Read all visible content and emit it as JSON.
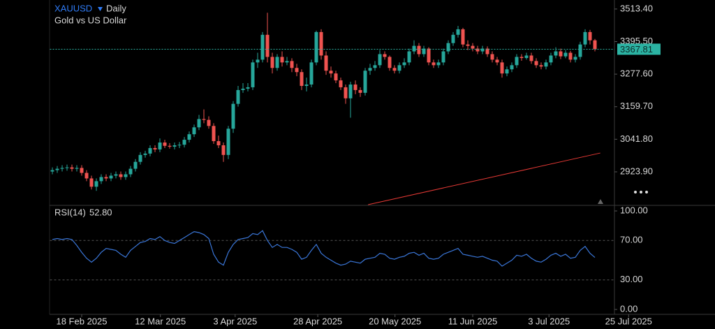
{
  "symbol": "XAUUSD",
  "interval": "Daily",
  "subtitle": "Gold vs US Dollar",
  "chart_data": [
    {
      "type": "candlestick",
      "up_color": "#26a69a",
      "down_color": "#ef5350",
      "open": [
        2925,
        2930,
        2935,
        2938,
        2940,
        2935,
        2938,
        2920,
        2900,
        2870,
        2890,
        2905,
        2900,
        2910,
        2915,
        2905,
        2915,
        2935,
        2960,
        2985,
        2990,
        3010,
        3005,
        3030,
        3018,
        3015,
        3020,
        3022,
        3040,
        3060,
        3085,
        3115,
        3112,
        3090,
        3035,
        3020,
        2985,
        3080,
        3170,
        3220,
        3225,
        3230,
        3320,
        3330,
        3420,
        3340,
        3300,
        3340,
        3320,
        3325,
        3300,
        3285,
        3235,
        3240,
        3320,
        3430,
        3345,
        3290,
        3280,
        3255,
        3230,
        3190,
        3240,
        3220,
        3210,
        3290,
        3300,
        3310,
        3350,
        3340,
        3300,
        3290,
        3310,
        3320,
        3360,
        3380,
        3350,
        3370,
        3320,
        3310,
        3320,
        3360,
        3390,
        3420,
        3440,
        3385,
        3380,
        3370,
        3360,
        3370,
        3350,
        3330,
        3320,
        3280,
        3295,
        3310,
        3340,
        3336,
        3345,
        3325,
        3310,
        3305,
        3320,
        3345,
        3360,
        3342,
        3355,
        3330,
        3340,
        3385,
        3430,
        3400
      ],
      "high": [
        2940,
        2945,
        2948,
        2950,
        2950,
        2948,
        2948,
        2930,
        2910,
        2900,
        2915,
        2915,
        2920,
        2925,
        2925,
        2925,
        2945,
        2970,
        2995,
        3000,
        3020,
        3020,
        3045,
        3040,
        3028,
        3030,
        3032,
        3050,
        3070,
        3095,
        3130,
        3150,
        3125,
        3100,
        3055,
        3030,
        3090,
        3180,
        3235,
        3245,
        3245,
        3330,
        3355,
        3430,
        3500,
        3355,
        3350,
        3360,
        3340,
        3335,
        3315,
        3295,
        3265,
        3330,
        3435,
        3440,
        3360,
        3305,
        3290,
        3265,
        3240,
        3250,
        3255,
        3230,
        3300,
        3315,
        3325,
        3365,
        3360,
        3345,
        3310,
        3320,
        3335,
        3370,
        3400,
        3390,
        3380,
        3375,
        3330,
        3330,
        3370,
        3400,
        3430,
        3452,
        3445,
        3400,
        3390,
        3380,
        3380,
        3378,
        3360,
        3340,
        3330,
        3305,
        3320,
        3350,
        3350,
        3355,
        3355,
        3335,
        3320,
        3330,
        3355,
        3375,
        3370,
        3365,
        3362,
        3350,
        3395,
        3440,
        3438,
        3405
      ],
      "low": [
        2915,
        2920,
        2925,
        2928,
        2925,
        2925,
        2910,
        2890,
        2860,
        2855,
        2880,
        2890,
        2890,
        2900,
        2895,
        2895,
        2905,
        2925,
        2950,
        2975,
        2980,
        2995,
        2995,
        3010,
        3008,
        3005,
        3010,
        3012,
        3030,
        3050,
        3075,
        3100,
        3080,
        3025,
        3010,
        2960,
        2970,
        3065,
        3160,
        3210,
        3215,
        3220,
        3300,
        3320,
        3320,
        3280,
        3290,
        3305,
        3310,
        3285,
        3270,
        3220,
        3215,
        3230,
        3310,
        3330,
        3275,
        3265,
        3245,
        3220,
        3170,
        3120,
        3205,
        3195,
        3200,
        3275,
        3290,
        3300,
        3330,
        3290,
        3280,
        3280,
        3300,
        3310,
        3350,
        3340,
        3340,
        3310,
        3300,
        3300,
        3310,
        3350,
        3380,
        3410,
        3375,
        3365,
        3360,
        3350,
        3350,
        3340,
        3320,
        3310,
        3265,
        3270,
        3285,
        3300,
        3326,
        3330,
        3315,
        3300,
        3295,
        3295,
        3310,
        3335,
        3332,
        3335,
        3320,
        3320,
        3330,
        3375,
        3385,
        3360
      ],
      "close": [
        2930,
        2935,
        2938,
        2940,
        2935,
        2938,
        2920,
        2900,
        2870,
        2890,
        2905,
        2900,
        2910,
        2915,
        2905,
        2915,
        2935,
        2960,
        2985,
        2990,
        3010,
        3005,
        3030,
        3018,
        3015,
        3020,
        3022,
        3040,
        3060,
        3085,
        3115,
        3112,
        3090,
        3035,
        3020,
        2985,
        3080,
        3170,
        3220,
        3225,
        3230,
        3320,
        3330,
        3420,
        3340,
        3300,
        3340,
        3320,
        3325,
        3300,
        3285,
        3235,
        3240,
        3320,
        3430,
        3345,
        3290,
        3280,
        3255,
        3230,
        3190,
        3240,
        3220,
        3210,
        3290,
        3300,
        3310,
        3350,
        3340,
        3300,
        3290,
        3310,
        3320,
        3360,
        3380,
        3350,
        3370,
        3320,
        3310,
        3320,
        3360,
        3390,
        3420,
        3440,
        3385,
        3380,
        3370,
        3360,
        3370,
        3350,
        3330,
        3320,
        3280,
        3295,
        3310,
        3340,
        3336,
        3345,
        3325,
        3310,
        3305,
        3320,
        3345,
        3360,
        3342,
        3355,
        3330,
        3340,
        3385,
        3430,
        3400,
        3367.81
      ],
      "last_price_color": "#2bb3a3",
      "trendline": {
        "color": "#e53935",
        "x": [
          64.6,
          112.1
        ],
        "values": [
          2805,
          2992
        ]
      },
      "xlim": [
        -0.5,
        115
      ],
      "ylim": [
        2805,
        3546
      ],
      "xticks": [
        {
          "value": 6,
          "label": "18 Feb 2025"
        },
        {
          "value": 22.1,
          "label": "12 Mar 2025"
        },
        {
          "value": 37.4,
          "label": "3 Apr 2025"
        },
        {
          "value": 54.3,
          "label": "28 Apr 2025"
        },
        {
          "value": 70.1,
          "label": "20 May 2025"
        },
        {
          "value": 86,
          "label": "11 Jun 2025"
        },
        {
          "value": 101.6,
          "label": "3 Jul 2025"
        },
        {
          "value": 117.9,
          "label": "25 Jul 2025"
        }
      ],
      "yticks": [
        {
          "value": 3513.4,
          "label": "3513.40"
        },
        {
          "value": 3395.5,
          "label": "3395.50"
        },
        {
          "value": 3277.6,
          "label": "3277.60"
        },
        {
          "value": 3159.7,
          "label": "3159.70"
        },
        {
          "value": 3041.8,
          "label": "3041.80"
        },
        {
          "value": 2923.9,
          "label": "2923.90"
        }
      ]
    },
    {
      "type": "line",
      "name": "RSI(14)",
      "current_label": "52.80",
      "color": "#3a76d8",
      "values": [
        71,
        72,
        71,
        72,
        71,
        65,
        58,
        52,
        48,
        52,
        58,
        62,
        61,
        60,
        56,
        53,
        60,
        64,
        68,
        69,
        72,
        71,
        74,
        70,
        68,
        67,
        70,
        73,
        76,
        79,
        78,
        76,
        72,
        56,
        48,
        45,
        58,
        66,
        71,
        72,
        73,
        77,
        76,
        80,
        70,
        63,
        66,
        63,
        63,
        61,
        58,
        51,
        53,
        60,
        66,
        57,
        53,
        50,
        47,
        45,
        46,
        49,
        48,
        47,
        51,
        52,
        53,
        57,
        56,
        52,
        51,
        53,
        54,
        57,
        58,
        55,
        57,
        52,
        51,
        52,
        56,
        58,
        60,
        62,
        56,
        55,
        54,
        53,
        54,
        52,
        50,
        49,
        44,
        47,
        50,
        55,
        54,
        56,
        52,
        49,
        48,
        51,
        55,
        57,
        54,
        56,
        52,
        53,
        60,
        64,
        57,
        52.8
      ],
      "ylim": [
        0,
        100
      ],
      "yticks": [
        {
          "value": 100,
          "label": "100.00"
        },
        {
          "value": 70,
          "label": "70.00"
        },
        {
          "value": 30,
          "label": "30.00"
        },
        {
          "value": 0,
          "label": "0.00"
        }
      ]
    }
  ]
}
